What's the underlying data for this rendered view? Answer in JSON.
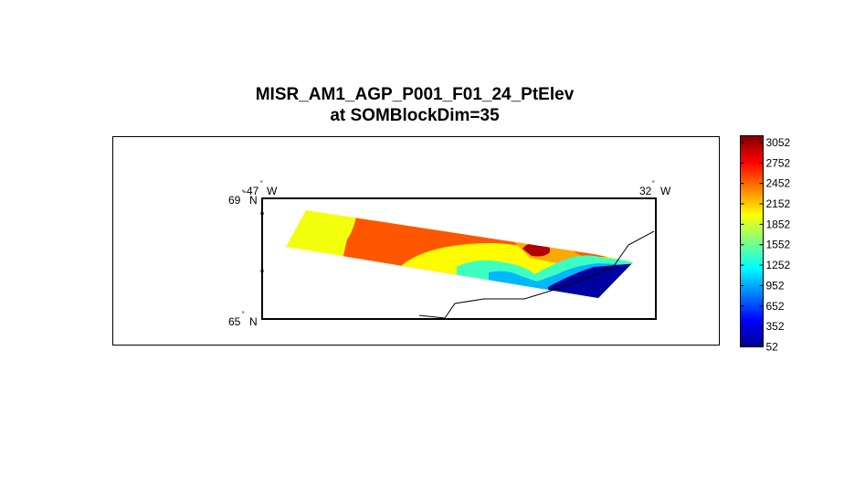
{
  "chart_data": {
    "type": "heatmap",
    "title_line1": "MISR_AM1_AGP_P001_F01_24_PtElev",
    "title_line2": "at SOMBlockDim=35",
    "map_labels": {
      "lon_west": "-47",
      "lon_east": "32",
      "lon_suffix": "W",
      "lat_north": "69",
      "lat_south": "65",
      "lat_suffix": "N"
    },
    "colorbar": {
      "min": 52,
      "max": 3152,
      "ticks": [
        3052,
        2752,
        2452,
        2152,
        1852,
        1552,
        1252,
        952,
        652,
        352,
        52
      ],
      "colormap": "jet"
    },
    "zones": [
      {
        "id": "west-plateau",
        "value": 1950
      },
      {
        "id": "central-highland",
        "value": 2500
      },
      {
        "id": "ice-ridge",
        "value": 2000
      },
      {
        "id": "summit",
        "value": 3000
      },
      {
        "id": "upper-slope",
        "value": 2250
      },
      {
        "id": "transition-cyan",
        "value": 1400
      },
      {
        "id": "mid-slope",
        "value": 1000
      },
      {
        "id": "coastal-lowland",
        "value": 150
      }
    ],
    "grid": false,
    "legend": "right"
  }
}
